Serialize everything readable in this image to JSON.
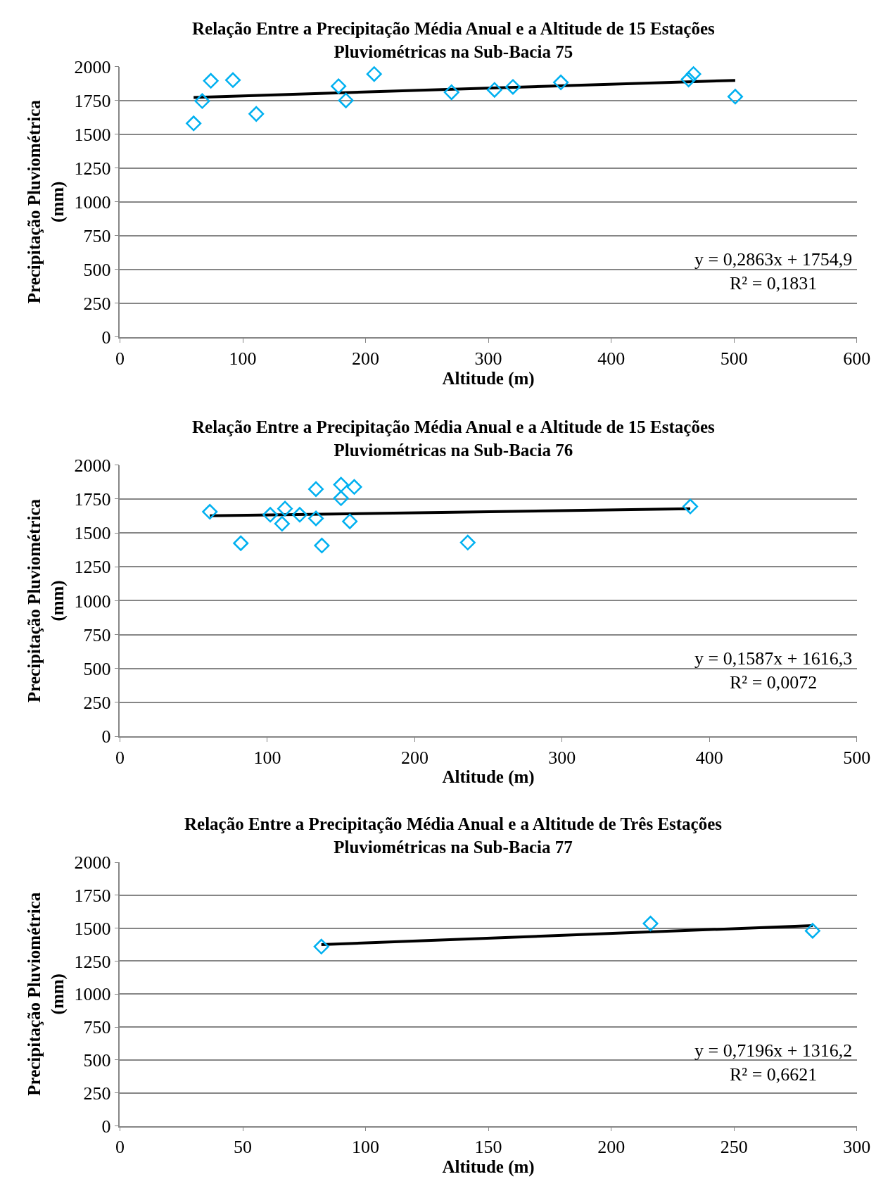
{
  "chart_data": [
    {
      "type": "scatter",
      "title": "Relação Entre a Precipitação Média Anual e a Altitude de 15 Estações\nPluviométricas na Sub-Bacia 75",
      "xlabel": "Altitude (m)",
      "ylabel": "Precipitação Pluviométrica\n(mm)",
      "annotations": [
        "y = 0,2863x + 1754,9\nR² = 0,1831"
      ],
      "xlim": [
        0,
        600
      ],
      "xticks": [
        0,
        100,
        200,
        300,
        400,
        500,
        600
      ],
      "ylim": [
        0,
        2000
      ],
      "yticks": [
        0,
        250,
        500,
        750,
        1000,
        1250,
        1500,
        1750,
        2000
      ],
      "grid": "y",
      "series": [
        {
          "marker": "diamond",
          "color": "#00b0f0",
          "x": [
            60,
            67,
            74,
            92,
            111,
            178,
            184,
            207,
            270,
            305,
            320,
            359,
            463,
            467,
            501
          ],
          "values": [
            1580,
            1745,
            1895,
            1900,
            1650,
            1855,
            1750,
            1945,
            1810,
            1828,
            1850,
            1883,
            1905,
            1945,
            1778
          ]
        },
        {
          "type": "line",
          "color": "#000000",
          "x": [
            60,
            501
          ],
          "values": [
            1772,
            1898
          ]
        }
      ]
    },
    {
      "type": "scatter",
      "title": "Relação Entre a Precipitação Média Anual e a Altitude de 15 Estações\nPluviométricas na Sub-Bacia 76",
      "xlabel": "Altitude (m)",
      "ylabel": "Precipitação Pluviométrica\n(mm)",
      "annotations": [
        "y = 0,1587x + 1616,3\nR² = 0,0072"
      ],
      "xlim": [
        0,
        500
      ],
      "xticks": [
        0,
        100,
        200,
        300,
        400,
        500
      ],
      "ylim": [
        0,
        2000
      ],
      "yticks": [
        0,
        250,
        500,
        750,
        1000,
        1250,
        1500,
        1750,
        2000
      ],
      "grid": "y",
      "series": [
        {
          "marker": "diamond",
          "color": "#00b0f0",
          "x": [
            61,
            82,
            102,
            110,
            112,
            122,
            133,
            133,
            137,
            150,
            150,
            159,
            156,
            236,
            387
          ],
          "values": [
            1656,
            1424,
            1634,
            1568,
            1679,
            1634,
            1607,
            1823,
            1407,
            1856,
            1756,
            1839,
            1585,
            1429,
            1695
          ]
        },
        {
          "type": "line",
          "color": "#000000",
          "x": [
            61,
            387
          ],
          "values": [
            1626,
            1678
          ]
        }
      ]
    },
    {
      "type": "scatter",
      "title": "Relação Entre a Precipitação Média Anual e a Altitude de Três Estações\nPluviométricas na Sub-Bacia 77",
      "xlabel": "Altitude (m)",
      "ylabel": "Precipitação Pluviométrica\n(mm)",
      "annotations": [
        "y = 0,7196x + 1316,2\nR² = 0,6621"
      ],
      "xlim": [
        0,
        300
      ],
      "xticks": [
        0,
        50,
        100,
        150,
        200,
        250,
        300
      ],
      "ylim": [
        0,
        2000
      ],
      "yticks": [
        0,
        250,
        500,
        750,
        1000,
        1250,
        1500,
        1750,
        2000
      ],
      "grid": "y",
      "series": [
        {
          "marker": "diamond",
          "color": "#00b0f0",
          "x": [
            82,
            216,
            282
          ],
          "values": [
            1360,
            1535,
            1480
          ]
        },
        {
          "type": "line",
          "color": "#000000",
          "x": [
            82,
            282
          ],
          "values": [
            1375,
            1519
          ]
        }
      ]
    }
  ]
}
